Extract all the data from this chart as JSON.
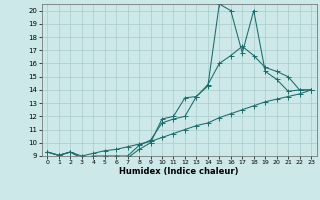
{
  "xlabel": "Humidex (Indice chaleur)",
  "xlim": [
    -0.5,
    23.5
  ],
  "ylim": [
    9,
    20.5
  ],
  "xticks": [
    0,
    1,
    2,
    3,
    4,
    5,
    6,
    7,
    8,
    9,
    10,
    11,
    12,
    13,
    14,
    15,
    16,
    17,
    18,
    19,
    20,
    21,
    22,
    23
  ],
  "yticks": [
    9,
    10,
    11,
    12,
    13,
    14,
    15,
    16,
    17,
    18,
    19,
    20
  ],
  "bg_color": "#cce8e8",
  "grid_color": "#aacccc",
  "line_color": "#1a6b6b",
  "line1_x": [
    0,
    1,
    2,
    3,
    4,
    5,
    6,
    7,
    8,
    9,
    10,
    11,
    12,
    13,
    14,
    15,
    16,
    17,
    18,
    19,
    20,
    21,
    22,
    23
  ],
  "line1_y": [
    9.3,
    9.05,
    9.3,
    8.85,
    8.85,
    8.85,
    8.85,
    8.85,
    9.5,
    10.0,
    11.8,
    12.0,
    13.4,
    13.5,
    14.3,
    20.5,
    20.0,
    16.8,
    20.0,
    15.4,
    14.8,
    13.9,
    14.0,
    14.0
  ],
  "line2_x": [
    0,
    1,
    2,
    3,
    4,
    5,
    6,
    7,
    8,
    9,
    10,
    11,
    12,
    13,
    14,
    15,
    16,
    17,
    18,
    19,
    20,
    21,
    22,
    23
  ],
  "line2_y": [
    9.3,
    9.05,
    9.3,
    8.85,
    9.0,
    9.0,
    9.0,
    9.0,
    9.8,
    10.2,
    11.5,
    11.8,
    12.0,
    13.5,
    14.4,
    16.0,
    16.6,
    17.3,
    16.6,
    15.7,
    15.4,
    15.0,
    14.0,
    14.0
  ],
  "line3_x": [
    0,
    1,
    2,
    3,
    4,
    5,
    6,
    7,
    8,
    9,
    10,
    11,
    12,
    13,
    14,
    15,
    16,
    17,
    18,
    19,
    20,
    21,
    22,
    23
  ],
  "line3_y": [
    9.3,
    9.05,
    9.3,
    9.0,
    9.2,
    9.4,
    9.5,
    9.7,
    9.9,
    10.1,
    10.4,
    10.7,
    11.0,
    11.3,
    11.5,
    11.9,
    12.2,
    12.5,
    12.8,
    13.1,
    13.3,
    13.5,
    13.7,
    14.0
  ]
}
